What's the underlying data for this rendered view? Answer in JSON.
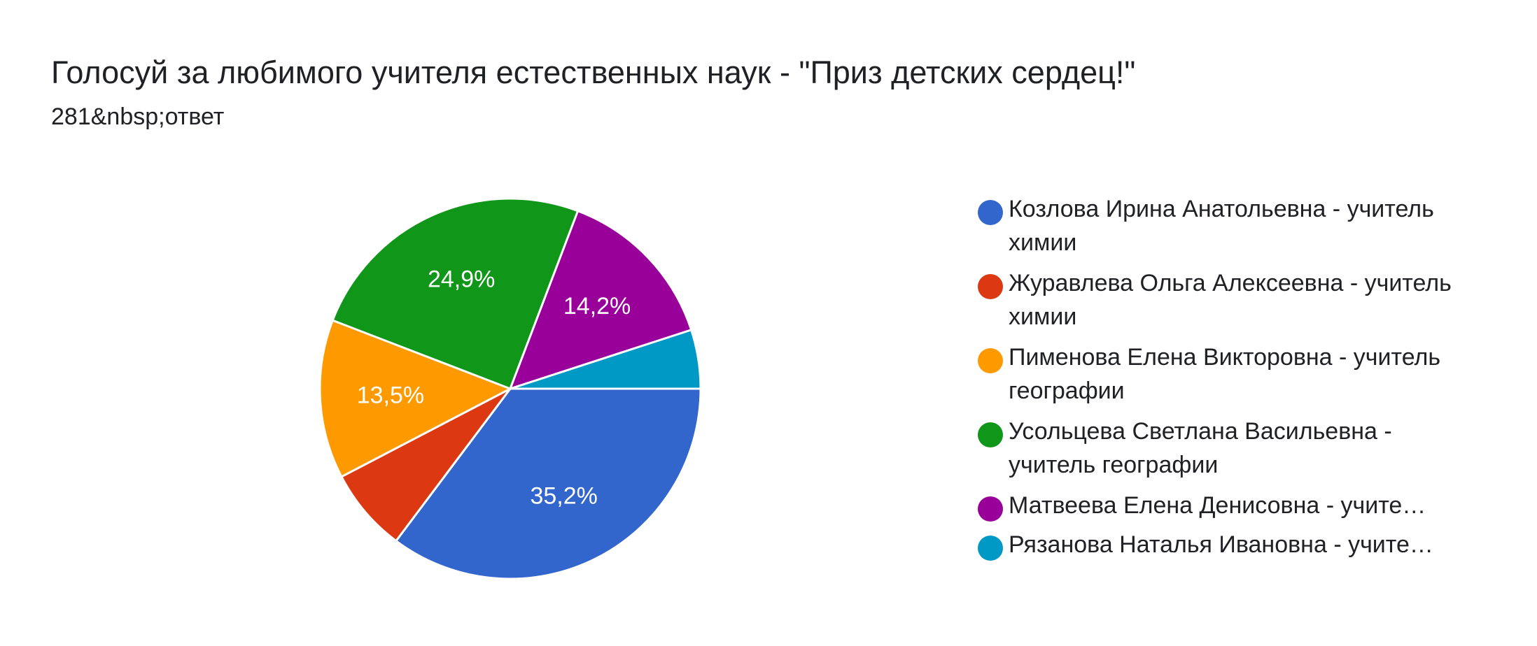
{
  "header": {
    "title": "Голосуй за любимого учителя естественных наук - \"Приз детских сердец!\"",
    "subtitle": "281&nbsp;ответ"
  },
  "chart_data": {
    "type": "pie",
    "title": "Голосуй за любимого учителя естественных наук - \"Приз детских сердец!\"",
    "total_responses": 281,
    "legend_position": "right",
    "start_angle": "3 o'clock, clockwise",
    "slices": [
      {
        "name": "Козлова Ирина Анатольевна - учитель химии",
        "value": 35.2,
        "label": "35,2%",
        "color": "#3366cc",
        "truncated": false
      },
      {
        "name": "Журавлева Ольга Алексеевна - учитель химии",
        "value": 7.1,
        "label": "",
        "color": "#dc3912",
        "truncated": false
      },
      {
        "name": "Пименова Елена Викторовна - учитель географии",
        "value": 13.5,
        "label": "13,5%",
        "color": "#ff9900",
        "truncated": false
      },
      {
        "name": "Усольцева Светлана Васильевна - учитель географии",
        "value": 24.9,
        "label": "24,9%",
        "color": "#109618",
        "truncated": false
      },
      {
        "name": "Матвеева Елена Денисовна - учите…",
        "value": 14.2,
        "label": "14,2%",
        "color": "#990099",
        "truncated": true
      },
      {
        "name": "Рязанова Наталья Ивановна - учите…",
        "value": 5.0,
        "label": "",
        "color": "#0099c6",
        "truncated": true
      }
    ]
  }
}
